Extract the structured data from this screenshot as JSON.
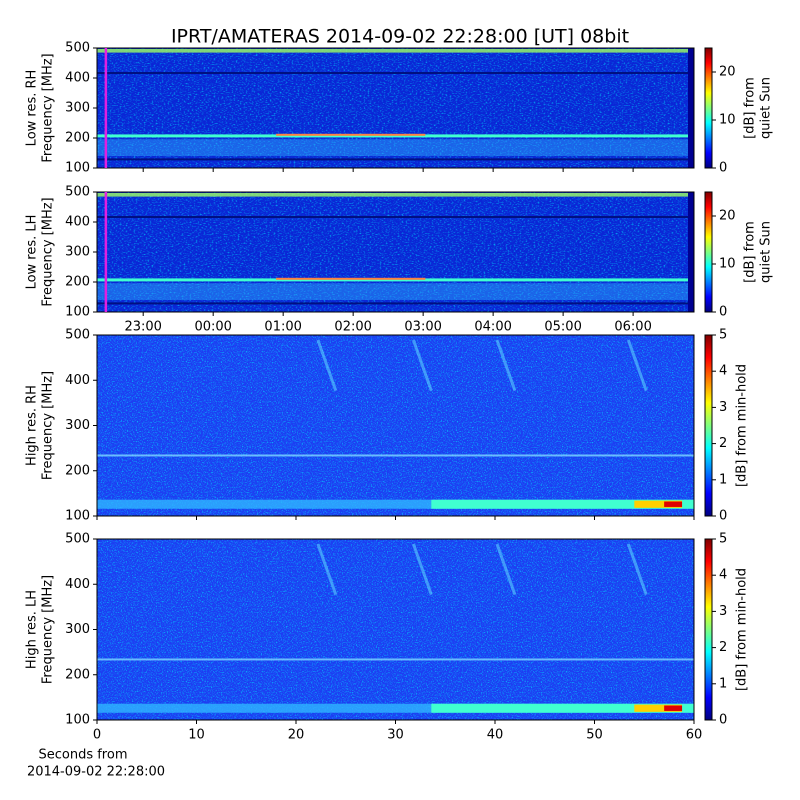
{
  "title": "IPRT/AMATERAS 2014-09-02 22:28:00 [UT]   08bit",
  "chart_data": [
    {
      "type": "heatmap",
      "ylabel": [
        "Low res. RH",
        "Frequency [MHz]"
      ],
      "ylim": [
        100,
        500
      ],
      "yticks": [
        100,
        200,
        300,
        400,
        500
      ],
      "colorbar_label": [
        "[dB] from",
        "quiet Sun"
      ],
      "clim": [
        0,
        25
      ],
      "cticks": [
        0,
        10,
        20
      ],
      "xlim": [
        22.34,
        30.87
      ],
      "marker": 22.4667,
      "marker_color": "#e020e0"
    },
    {
      "type": "heatmap",
      "ylabel": [
        "Low res. LH",
        "Frequency [MHz]"
      ],
      "ylim": [
        100,
        500
      ],
      "yticks": [
        100,
        200,
        300,
        400,
        500
      ],
      "colorbar_label": [
        "[dB] from",
        "quiet Sun"
      ],
      "clim": [
        0,
        25
      ],
      "cticks": [
        0,
        10,
        20
      ],
      "xlim": [
        22.34,
        30.87
      ],
      "xticks": [
        {
          "value": 23,
          "label": "23:00"
        },
        {
          "value": 24,
          "label": "00:00"
        },
        {
          "value": 25,
          "label": "01:00"
        },
        {
          "value": 26,
          "label": "02:00"
        },
        {
          "value": 27,
          "label": "03:00"
        },
        {
          "value": 28,
          "label": "04:00"
        },
        {
          "value": 29,
          "label": "05:00"
        },
        {
          "value": 30,
          "label": "06:00"
        }
      ],
      "marker": 22.4667,
      "marker_color": "#e020e0"
    },
    {
      "type": "heatmap",
      "ylabel": [
        "High res. RH",
        "Frequency [MHz]"
      ],
      "ylim": [
        100,
        500
      ],
      "yticks": [
        100,
        200,
        300,
        400,
        500
      ],
      "colorbar_label": [
        "[dB] from min-hold"
      ],
      "clim": [
        0,
        5
      ],
      "cticks": [
        0,
        1,
        2,
        3,
        4,
        5
      ],
      "xlim": [
        0,
        60
      ]
    },
    {
      "type": "heatmap",
      "ylabel": [
        "High res. LH",
        "Frequency [MHz]"
      ],
      "ylim": [
        100,
        500
      ],
      "yticks": [
        100,
        200,
        300,
        400,
        500
      ],
      "colorbar_label": [
        "[dB] from min-hold"
      ],
      "clim": [
        0,
        5
      ],
      "cticks": [
        0,
        1,
        2,
        3,
        4,
        5
      ],
      "xlim": [
        0,
        60
      ],
      "xticks": [
        0,
        10,
        20,
        30,
        40,
        50,
        60
      ],
      "xlabel": [
        "Seconds from",
        "2014-09-02 22:28:00"
      ]
    }
  ]
}
